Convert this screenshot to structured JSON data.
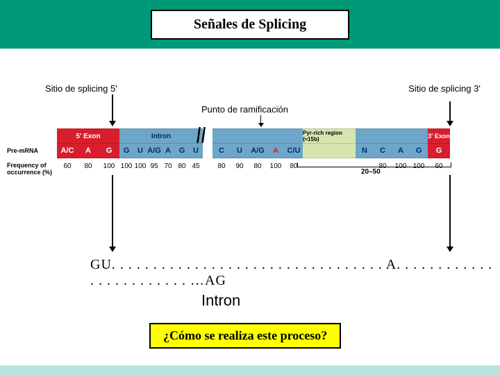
{
  "title": "Señales de Splicing",
  "labels": {
    "site5": "Sitio de splicing 5'",
    "branch": "Punto de ramificación",
    "site3": "Sitio de splicing 3'"
  },
  "rows": {
    "seq_label": "Pre-mRNA",
    "freq_label": "Frequency of occurrence (%)"
  },
  "five_exon": {
    "header": "5' Exon",
    "color": "#d81e2c",
    "text": "#fff",
    "cells": [
      "A/C",
      "A",
      "G"
    ],
    "freq": [
      "60",
      "80",
      "100"
    ]
  },
  "intron_5": {
    "header": "Intron",
    "color": "#6ea6c9",
    "text": "#002b6b",
    "cells": [
      "G",
      "U",
      "A/G",
      "A",
      "G",
      "U"
    ],
    "freq": [
      "100",
      "100",
      "95",
      "70",
      "80",
      "45"
    ]
  },
  "branch_seg": {
    "color": "#6ea6c9",
    "text": "#002b6b",
    "cells": [
      "C",
      "U",
      "A/G",
      "A",
      "C/U"
    ],
    "freq": [
      "80",
      "90",
      "80",
      "100",
      "80"
    ],
    "highlight": 3,
    "highlight_color": "#d81e2c"
  },
  "pyr": {
    "header": "Pyr-rich region (≈15b)",
    "color": "#d7e6af",
    "text": "#000"
  },
  "intron_3": {
    "color": "#6ea6c9",
    "text": "#002b6b",
    "cells": [
      "N",
      "C",
      "A",
      "G"
    ],
    "freq": [
      "",
      "80",
      "100",
      "100"
    ]
  },
  "three_exon": {
    "header": "3' Exon",
    "color": "#d81e2c",
    "text": "#fff",
    "cells": [
      "G"
    ],
    "freq": [
      "60"
    ]
  },
  "bracket20_50": "20–50",
  "gu_text": "GU. . . . . . . . . . . . . . . . . . . . . . . . . . . . . . . . . A. . . . . . . . . . . . . . . . . . . . . . . . …AG",
  "intron_word": "Intron",
  "question": "¿Cómo se realiza este proceso?"
}
